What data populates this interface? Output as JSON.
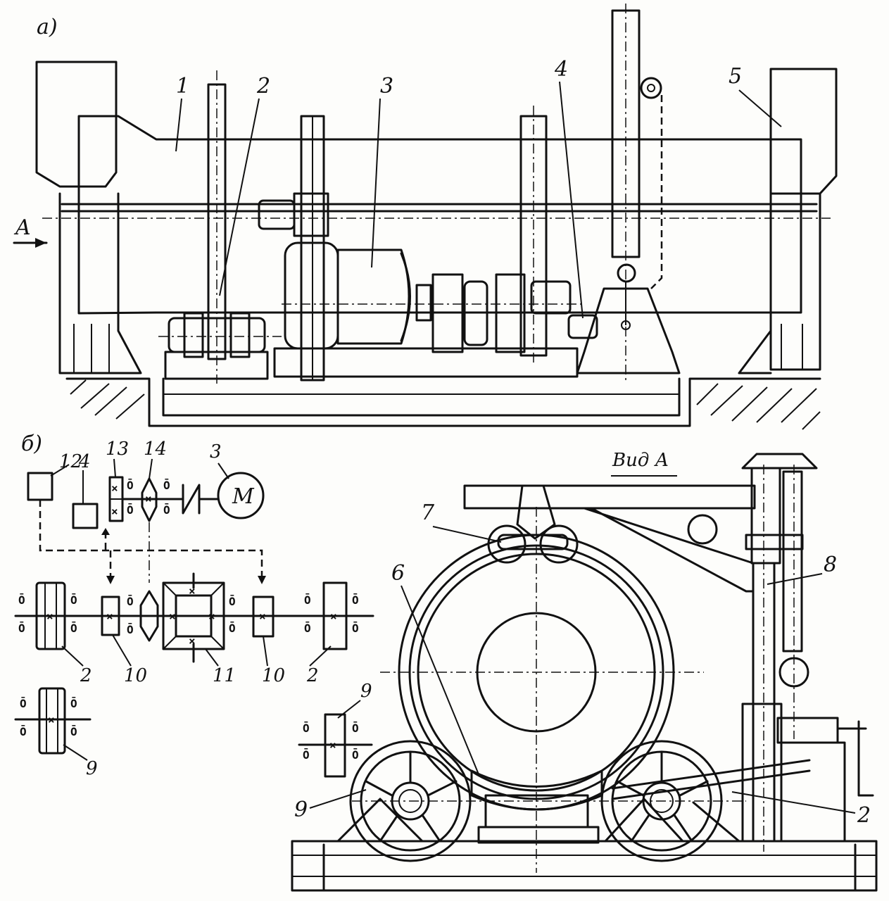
{
  "view_a_section": {
    "section_label": "a)",
    "arrow_label": "A",
    "callouts": [
      "1",
      "2",
      "3",
      "4",
      "5"
    ]
  },
  "view_b_section": {
    "section_label": "б)",
    "motor_symbol": "M",
    "top_callouts": [
      "12",
      "4",
      "13",
      "14",
      "3"
    ],
    "bottom_callouts": [
      "2",
      "10",
      "11",
      "10",
      "2"
    ],
    "lone_roller_label": "9"
  },
  "view_from_a": {
    "title": "Вид А",
    "callouts": [
      "7",
      "6",
      "8",
      "9",
      "9",
      "2"
    ]
  }
}
